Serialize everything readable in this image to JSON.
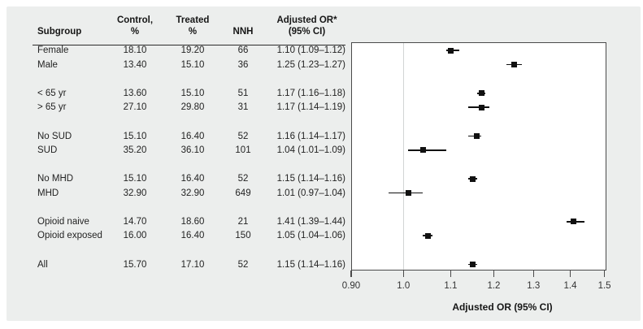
{
  "colors": {
    "panel_bg": "#eceeed",
    "plot_bg": "#ffffff",
    "plot_border": "#4a4a4a",
    "reference_line": "#d2d5d4",
    "marker": "#111111",
    "text": "#232323",
    "header_text": "#161616"
  },
  "table": {
    "headers": {
      "subgroup": "Subgroup",
      "control_line1": "Control,",
      "control_line2": "%",
      "treated_line1": "Treated",
      "treated_line2": "%",
      "nnh": "NNH",
      "or_line1": "Adjusted OR*",
      "or_line2": "(95% CI)"
    }
  },
  "chart_data": {
    "type": "scatter",
    "subtype": "forest-plot",
    "title": "",
    "xlabel": "Adjusted OR (95% CI)",
    "ylabel": "",
    "xscale": "log",
    "xlim": [
      0.9,
      1.506
    ],
    "x_ticks": [
      0.9,
      1.0,
      1.1,
      1.2,
      1.3,
      1.4,
      1.5
    ],
    "x_tick_labels": [
      "0.90",
      "1.0",
      "1.1",
      "1.2",
      "1.3",
      "1.4",
      "1.5"
    ],
    "reference_line_x": 1.0,
    "grid": false,
    "legend": false,
    "groups": [
      [
        {
          "subgroup": "Female",
          "control": "18.10",
          "treated": "19.20",
          "nnh": "66",
          "or_ci": "1.10 (1.09–1.12)",
          "or": 1.1,
          "lo": 1.09,
          "hi": 1.12
        },
        {
          "subgroup": "Male",
          "control": "13.40",
          "treated": "15.10",
          "nnh": "36",
          "or_ci": "1.25 (1.23–1.27)",
          "or": 1.25,
          "lo": 1.23,
          "hi": 1.27
        }
      ],
      [
        {
          "subgroup": "< 65 yr",
          "control": "13.60",
          "treated": "15.10",
          "nnh": "51",
          "or_ci": "1.17 (1.16–1.18)",
          "or": 1.17,
          "lo": 1.16,
          "hi": 1.18
        },
        {
          "subgroup": "> 65 yr",
          "control": "27.10",
          "treated": "29.80",
          "nnh": "31",
          "or_ci": "1.17 (1.14–1.19)",
          "or": 1.17,
          "lo": 1.14,
          "hi": 1.19
        }
      ],
      [
        {
          "subgroup": "No SUD",
          "control": "15.10",
          "treated": "16.40",
          "nnh": "52",
          "or_ci": "1.16 (1.14–1.17)",
          "or": 1.16,
          "lo": 1.14,
          "hi": 1.17
        },
        {
          "subgroup": "SUD",
          "control": "35.20",
          "treated": "36.10",
          "nnh": "101",
          "or_ci": "1.04 (1.01–1.09)",
          "or": 1.04,
          "lo": 1.01,
          "hi": 1.09
        }
      ],
      [
        {
          "subgroup": "No MHD",
          "control": "15.10",
          "treated": "16.40",
          "nnh": "52",
          "or_ci": "1.15 (1.14–1.16)",
          "or": 1.15,
          "lo": 1.14,
          "hi": 1.16
        },
        {
          "subgroup": "MHD",
          "control": "32.90",
          "treated": "32.90",
          "nnh": "649",
          "or_ci": "1.01 (0.97–1.04)",
          "or": 1.01,
          "lo": 0.97,
          "hi": 1.04
        }
      ],
      [
        {
          "subgroup": "Opioid naive",
          "control": "14.70",
          "treated": "18.60",
          "nnh": "21",
          "or_ci": "1.41 (1.39–1.44)",
          "or": 1.41,
          "lo": 1.39,
          "hi": 1.44
        },
        {
          "subgroup": "Opioid exposed",
          "control": "16.00",
          "treated": "16.40",
          "nnh": "150",
          "or_ci": "1.05 (1.04–1.06)",
          "or": 1.05,
          "lo": 1.04,
          "hi": 1.06
        }
      ],
      [
        {
          "subgroup": "All",
          "control": "15.70",
          "treated": "17.10",
          "nnh": "52",
          "or_ci": "1.15 (1.14–1.16)",
          "or": 1.15,
          "lo": 1.14,
          "hi": 1.16
        }
      ]
    ]
  }
}
